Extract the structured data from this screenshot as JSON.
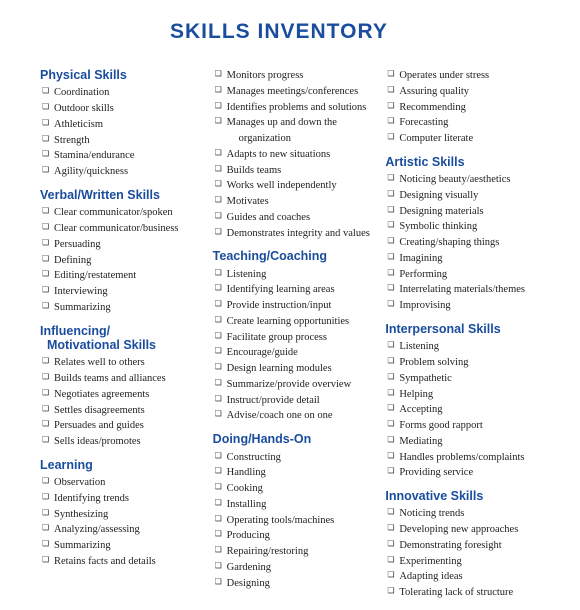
{
  "title": "SKILLS INVENTORY",
  "colors": {
    "accent": "#1a4d9e",
    "text": "#222222",
    "bg": "#ffffff"
  },
  "columns": [
    {
      "sections": [
        {
          "heading": "Physical Skills",
          "items": [
            "Coordination",
            "Outdoor skills",
            "Athleticism",
            "Strength",
            "Stamina/endurance",
            "Agility/quickness"
          ]
        },
        {
          "heading": "Verbal/Written Skills",
          "items": [
            "Clear communicator/spoken",
            "Clear communicator/business",
            "Persuading",
            "Defining",
            "Editing/restatement",
            "Interviewing",
            "Summarizing"
          ]
        },
        {
          "heading": "Influencing/\n  Motivational Skills",
          "items": [
            "Relates well to others",
            "Builds teams and alliances",
            "Negotiates agreements",
            "Settles disagreements",
            "Persuades and guides",
            "Sells ideas/promotes"
          ]
        },
        {
          "heading": "Learning",
          "items": [
            "Observation",
            "Identifying trends",
            "Synthesizing",
            "Analyzing/assessing",
            "Summarizing",
            "Retains facts and details"
          ]
        }
      ]
    },
    {
      "sections": [
        {
          "heading": "",
          "items": [
            "Monitors progress",
            "Manages meetings/conferences",
            "Identifies problems and solutions",
            "Manages up and down the",
            "  organization",
            "Adapts to new situations",
            "Builds teams",
            "Works well independently",
            "Motivates",
            "Guides and coaches",
            "Demonstrates integrity and values"
          ],
          "indent": [
            false,
            false,
            false,
            false,
            true,
            false,
            false,
            false,
            false,
            false,
            false
          ],
          "noCheck": [
            false,
            false,
            false,
            false,
            true,
            false,
            false,
            false,
            false,
            false,
            false
          ]
        },
        {
          "heading": "Teaching/Coaching",
          "items": [
            "Listening",
            "Identifying learning areas",
            "Provide instruction/input",
            "Create learning opportunities",
            "Facilitate group process",
            "Encourage/guide",
            "Design learning modules",
            "Summarize/provide overview",
            "Instruct/provide detail",
            "Advise/coach one on one"
          ]
        },
        {
          "heading": "Doing/Hands-On",
          "items": [
            "Constructing",
            "Handling",
            "Cooking",
            "Installing",
            "Operating tools/machines",
            "Producing",
            "Repairing/restoring",
            "Gardening",
            "Designing"
          ]
        }
      ]
    },
    {
      "sections": [
        {
          "heading": "",
          "items": [
            "Operates under stress",
            "Assuring quality",
            "Recommending",
            "Forecasting",
            "Computer literate"
          ]
        },
        {
          "heading": "Artistic Skills",
          "items": [
            "Noticing beauty/aesthetics",
            "Designing visually",
            "Designing materials",
            "Symbolic thinking",
            "Creating/shaping things",
            "Imagining",
            "Performing",
            "Interrelating materials/themes",
            "Improvising"
          ]
        },
        {
          "heading": "Interpersonal Skills",
          "items": [
            "Listening",
            "Problem solving",
            "Sympathetic",
            "Helping",
            "Accepting",
            "Forms good rapport",
            "Mediating",
            "Handles problems/complaints",
            "Providing service"
          ]
        },
        {
          "heading": "Innovative Skills",
          "items": [
            "Noticing trends",
            "Developing new approaches",
            "Demonstrating foresight",
            "Experimenting",
            "Adapting ideas",
            "Tolerating lack of structure"
          ]
        }
      ]
    }
  ]
}
